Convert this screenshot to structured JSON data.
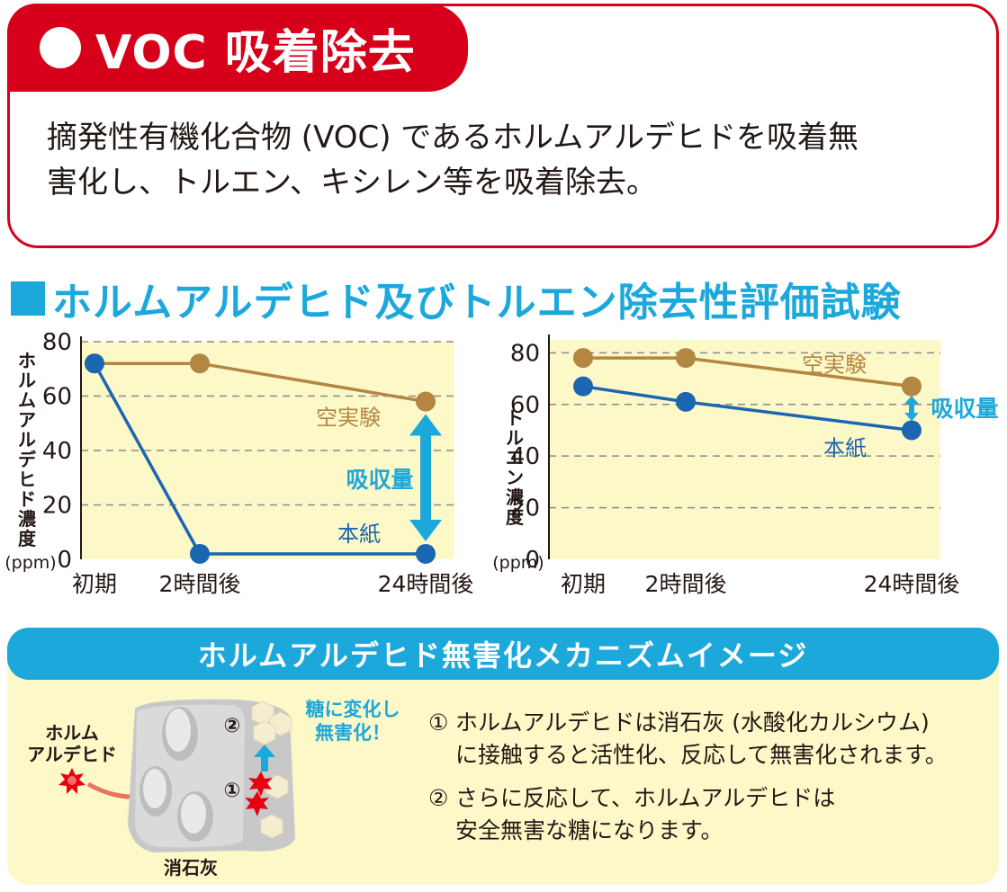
{
  "voc_section": {
    "title": "VOC 吸着除去",
    "body_line1": "摘発性有機化合物 (VOC) であるホルムアルデヒドを吸着無",
    "body_line2": "害化し、トルエン、キシレン等を吸着除去。"
  },
  "test_section": {
    "heading": "ホルムアルデヒド及びトルエン除去性評価試験"
  },
  "chart_data": [
    {
      "type": "line",
      "ylabel": "ホルムアルデヒド濃度",
      "yunit": "(ppm)",
      "ylim": [
        0,
        80
      ],
      "yticks": [
        0,
        20,
        40,
        60,
        80
      ],
      "categories": [
        "初期",
        "2時間後",
        "24時間後"
      ],
      "series": [
        {
          "name": "空実験",
          "values": [
            72,
            72,
            58
          ],
          "color": "#b38642"
        },
        {
          "name": "本紙",
          "values": [
            72,
            2,
            2
          ],
          "color": "#1b66b1"
        }
      ],
      "annotation": "吸収量",
      "grid": true
    },
    {
      "type": "line",
      "ylabel": "トルエン濃度",
      "yunit": "(ppm)",
      "ylim": [
        0,
        85
      ],
      "yticks": [
        0,
        20,
        40,
        60,
        80
      ],
      "categories": [
        "初期",
        "2時間後",
        "24時間後"
      ],
      "series": [
        {
          "name": "空実験",
          "values": [
            78,
            78,
            67
          ],
          "color": "#b38642"
        },
        {
          "name": "本紙",
          "values": [
            67,
            61,
            50
          ],
          "color": "#1b66b1"
        }
      ],
      "annotation": "吸収量",
      "grid": true
    }
  ],
  "mechanism": {
    "heading": "ホルムアルデヒド無害化メカニズムイメージ",
    "formaldehyde_label_line1": "ホルム",
    "formaldehyde_label_line2": "アルデヒド",
    "lime_label": "消石灰",
    "marker_1": "①",
    "marker_2": "②",
    "sugar_label_line1": "糖に変化し",
    "sugar_label_line2": "無害化！",
    "step1_num": "①",
    "step1_line1": "ホルムアルデヒドは消石灰 (水酸化カルシウム)",
    "step1_line2": "に接触すると活性化、反応して無害化されます。",
    "step2_num": "②",
    "step2_line1": "さらに反応して、ホルムアルデヒドは",
    "step2_line2": "安全無害な糖になります。"
  },
  "colors": {
    "red": "#d7001b",
    "cyan": "#1da8dc",
    "plot_bg": "#fdf8c8",
    "brown": "#b38642",
    "blue": "#1b66b1"
  }
}
